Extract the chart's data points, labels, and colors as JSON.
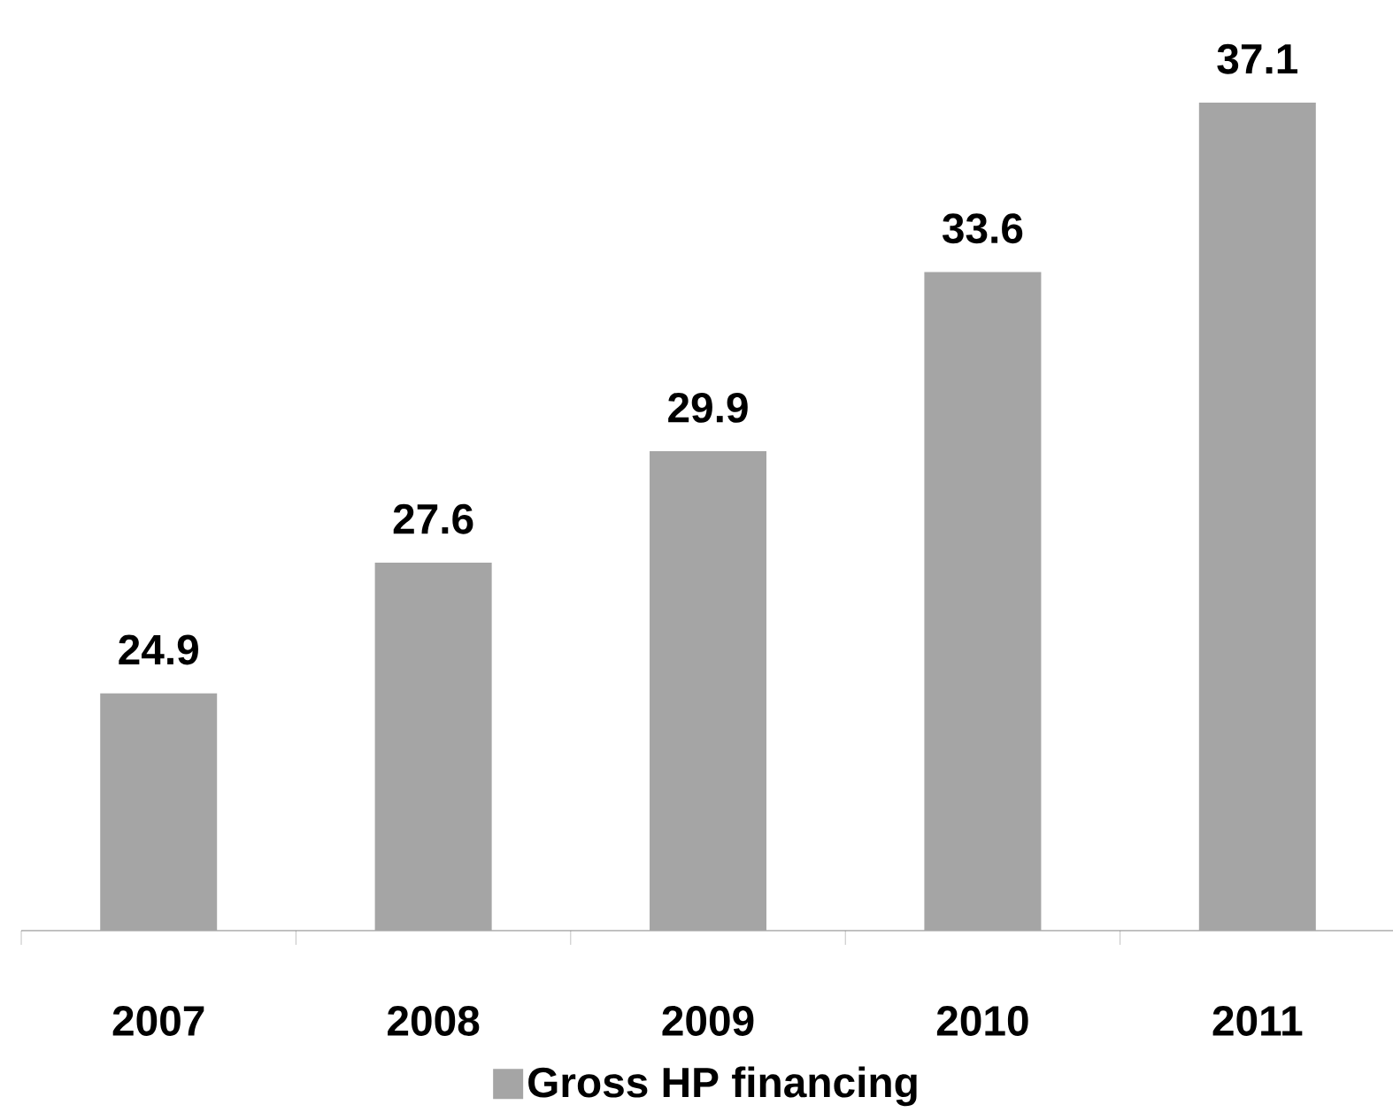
{
  "chart_data": {
    "type": "bar",
    "categories": [
      "2007",
      "2008",
      "2009",
      "2010",
      "2011"
    ],
    "series": [
      {
        "name": "Gross HP financing",
        "color": "#a5a5a5",
        "values": [
          24.9,
          27.6,
          29.9,
          33.6,
          37.1
        ]
      }
    ],
    "ylim": [
      20,
      37.1
    ],
    "data_labels": true,
    "legend": "bottom"
  }
}
